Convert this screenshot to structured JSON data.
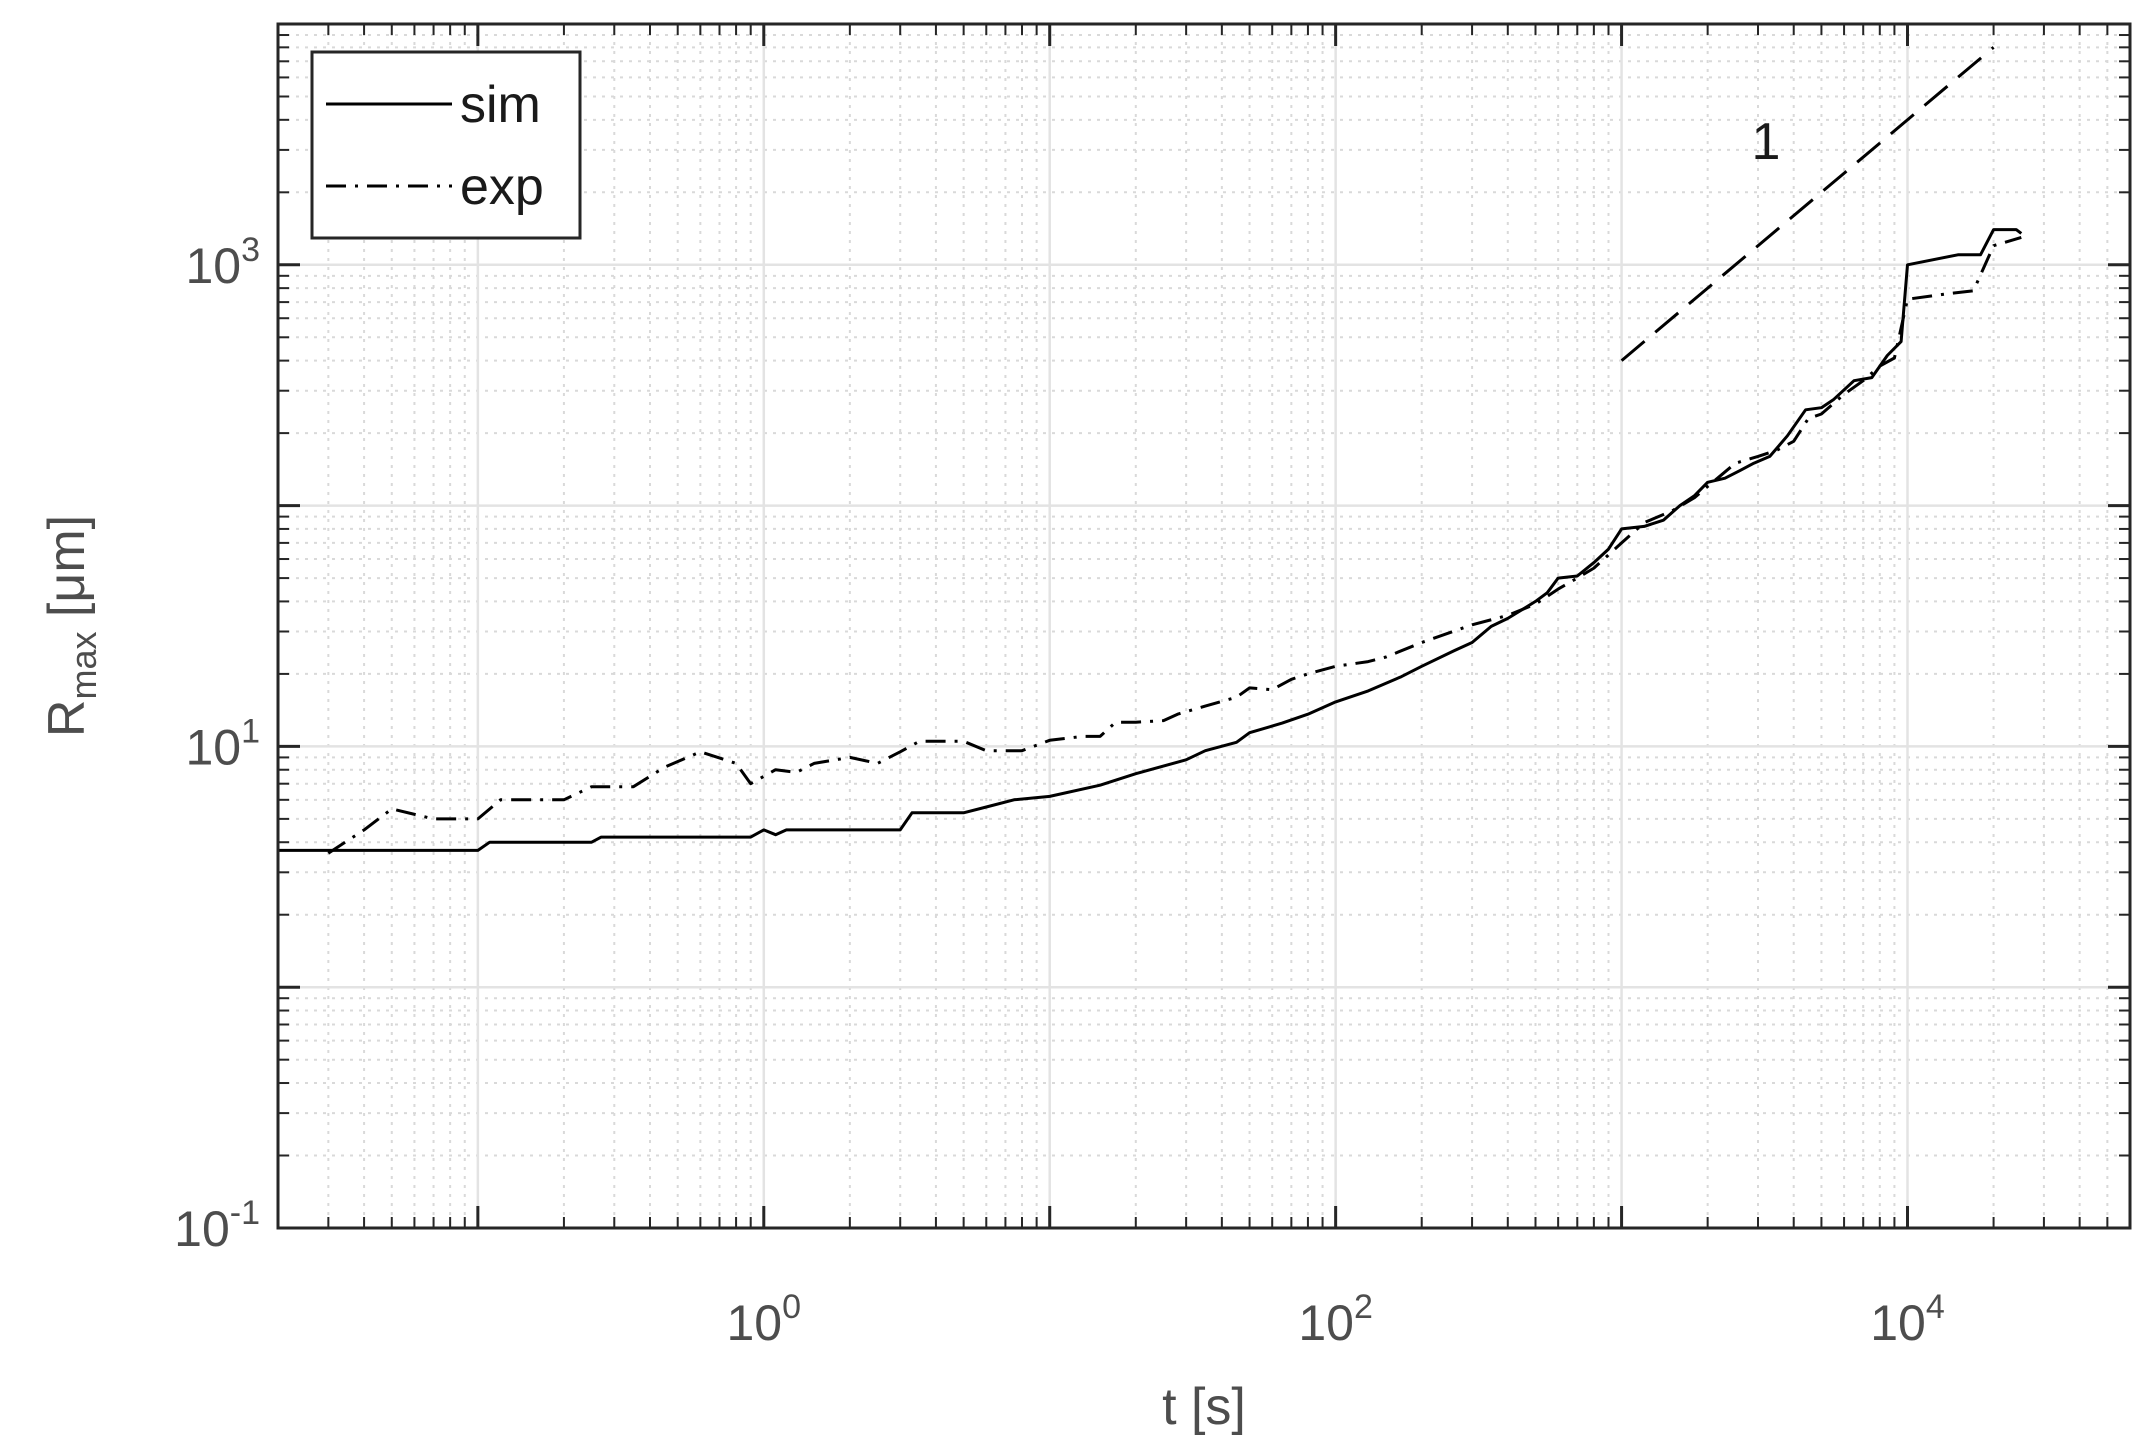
{
  "chart_data": {
    "type": "line",
    "title": "",
    "xlabel": "t [s]",
    "ylabel": {
      "base": "R",
      "subscript": "max",
      "rest": " [μm]"
    },
    "xscale": "log",
    "yscale": "log",
    "xlim": [
      0.02,
      60000
    ],
    "ylim": [
      0.1,
      10000
    ],
    "xticks": [
      {
        "value": 1,
        "base": "10",
        "exp": "0"
      },
      {
        "value": 100,
        "base": "10",
        "exp": "2"
      },
      {
        "value": 10000,
        "base": "10",
        "exp": "4"
      }
    ],
    "yticks": [
      {
        "value": 0.1,
        "base": "10",
        "exp": "-1"
      },
      {
        "value": 10,
        "base": "10",
        "exp": "1"
      },
      {
        "value": 1000,
        "base": "10",
        "exp": "3"
      }
    ],
    "grid": true,
    "legend": {
      "position": "top-left"
    },
    "series": [
      {
        "name": "sim",
        "style": "solid",
        "color": "#000000",
        "points": [
          [
            0.02,
            3.7
          ],
          [
            0.1,
            3.7
          ],
          [
            0.11,
            4.0
          ],
          [
            0.25,
            4.0
          ],
          [
            0.27,
            4.2
          ],
          [
            0.9,
            4.2
          ],
          [
            1.0,
            4.5
          ],
          [
            1.1,
            4.3
          ],
          [
            1.2,
            4.5
          ],
          [
            3.0,
            4.5
          ],
          [
            3.3,
            5.3
          ],
          [
            5.0,
            5.3
          ],
          [
            6.0,
            5.6
          ],
          [
            7.5,
            6.0
          ],
          [
            10,
            6.2
          ],
          [
            15,
            6.9
          ],
          [
            20,
            7.7
          ],
          [
            30,
            8.8
          ],
          [
            35,
            9.6
          ],
          [
            45,
            10.4
          ],
          [
            50,
            11.4
          ],
          [
            65,
            12.5
          ],
          [
            80,
            13.6
          ],
          [
            100,
            15.3
          ],
          [
            130,
            17.0
          ],
          [
            170,
            19.5
          ],
          [
            200,
            21.5
          ],
          [
            260,
            25.0
          ],
          [
            300,
            27.0
          ],
          [
            350,
            31.5
          ],
          [
            400,
            34.0
          ],
          [
            500,
            40.0
          ],
          [
            550,
            43.5
          ],
          [
            600,
            50
          ],
          [
            700,
            51
          ],
          [
            800,
            58
          ],
          [
            900,
            66
          ],
          [
            1000,
            80
          ],
          [
            1200,
            82
          ],
          [
            1400,
            87
          ],
          [
            1600,
            100
          ],
          [
            1800,
            110
          ],
          [
            2000,
            125
          ],
          [
            2300,
            130
          ],
          [
            2600,
            140
          ],
          [
            2900,
            150
          ],
          [
            3300,
            160
          ],
          [
            3800,
            195
          ],
          [
            4400,
            250
          ],
          [
            5000,
            255
          ],
          [
            5500,
            275
          ],
          [
            6500,
            330
          ],
          [
            7500,
            340
          ],
          [
            8500,
            420
          ],
          [
            9500,
            480
          ],
          [
            10000,
            1000
          ],
          [
            15000,
            1100
          ],
          [
            18000,
            1100
          ],
          [
            20000,
            1400
          ],
          [
            24000,
            1400
          ],
          [
            25000,
            1350
          ]
        ]
      },
      {
        "name": "exp",
        "style": "dashdot",
        "color": "#000000",
        "points": [
          [
            0.03,
            3.6
          ],
          [
            0.04,
            4.5
          ],
          [
            0.05,
            5.5
          ],
          [
            0.07,
            5.0
          ],
          [
            0.1,
            5.0
          ],
          [
            0.12,
            6.0
          ],
          [
            0.2,
            6.0
          ],
          [
            0.25,
            6.8
          ],
          [
            0.35,
            6.8
          ],
          [
            0.45,
            8.2
          ],
          [
            0.6,
            9.5
          ],
          [
            0.8,
            8.5
          ],
          [
            0.9,
            7.0
          ],
          [
            1.1,
            8.0
          ],
          [
            1.3,
            7.8
          ],
          [
            1.5,
            8.5
          ],
          [
            2.0,
            9.0
          ],
          [
            2.5,
            8.5
          ],
          [
            3.0,
            9.5
          ],
          [
            3.5,
            10.5
          ],
          [
            5.0,
            10.5
          ],
          [
            6.0,
            9.6
          ],
          [
            8.0,
            9.6
          ],
          [
            10,
            10.6
          ],
          [
            13,
            11.0
          ],
          [
            15,
            11.0
          ],
          [
            17,
            12.6
          ],
          [
            20,
            12.6
          ],
          [
            25,
            12.8
          ],
          [
            28,
            13.6
          ],
          [
            35,
            14.7
          ],
          [
            45,
            16.0
          ],
          [
            50,
            17.5
          ],
          [
            60,
            17.2
          ],
          [
            70,
            19.0
          ],
          [
            80,
            20.0
          ],
          [
            100,
            21.5
          ],
          [
            130,
            22.5
          ],
          [
            150,
            23.5
          ],
          [
            200,
            27.0
          ],
          [
            300,
            32.0
          ],
          [
            400,
            35.0
          ],
          [
            500,
            39.0
          ],
          [
            600,
            45.0
          ],
          [
            700,
            50
          ],
          [
            800,
            55
          ],
          [
            1000,
            70
          ],
          [
            1200,
            85
          ],
          [
            1500,
            95
          ],
          [
            1800,
            108
          ],
          [
            2000,
            120
          ],
          [
            2500,
            150
          ],
          [
            3000,
            160
          ],
          [
            3500,
            170
          ],
          [
            4000,
            185
          ],
          [
            4500,
            230
          ],
          [
            5000,
            240
          ],
          [
            6000,
            290
          ],
          [
            7000,
            330
          ],
          [
            8000,
            380
          ],
          [
            9000,
            410
          ],
          [
            10000,
            720
          ],
          [
            14000,
            760
          ],
          [
            17000,
            780
          ],
          [
            20000,
            1200
          ],
          [
            25000,
            1300
          ]
        ]
      },
      {
        "name": "",
        "style": "dashed",
        "color": "#000000",
        "points": [
          [
            1000,
            400
          ],
          [
            20000,
            8000
          ]
        ]
      }
    ],
    "annotations": [
      {
        "text": "1",
        "x": 3200,
        "y": 2750
      }
    ]
  }
}
